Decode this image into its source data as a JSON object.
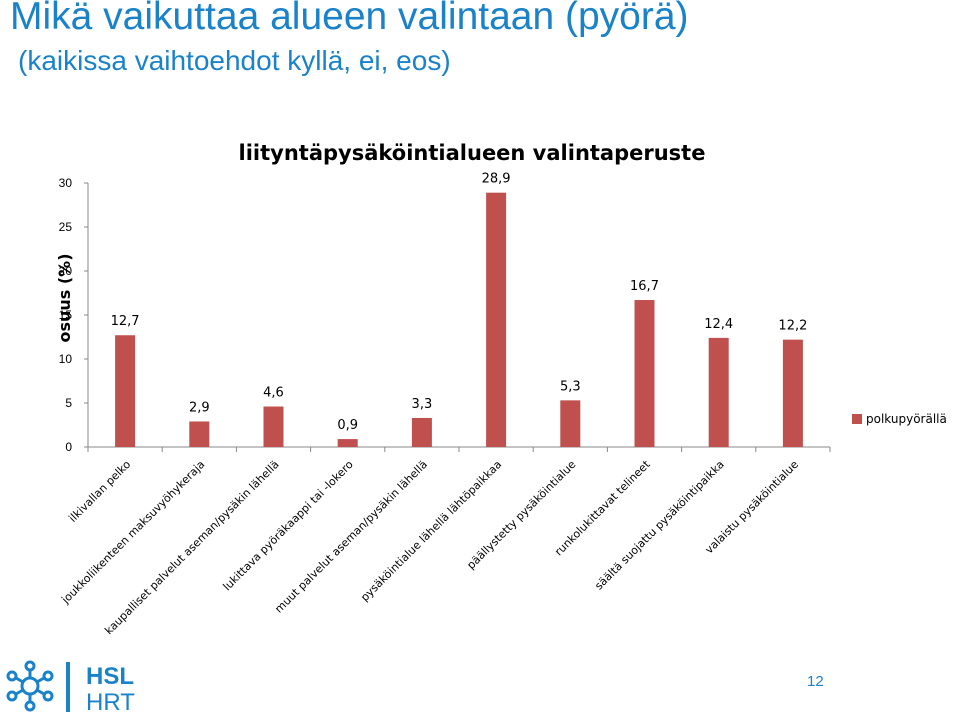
{
  "slide": {
    "title": "Mikä vaikuttaa alueen valintaan (pyörä)",
    "subtitle": "(kaikissa vaihtoehdot kyllä, ei, eos)",
    "page_number": "12"
  },
  "logo": {
    "line1": "HSL",
    "line2": "HRT"
  },
  "colors": {
    "accent": "#1a82c9",
    "bar": "#c0504d"
  },
  "chart_data": {
    "type": "bar",
    "title": "liityntäpysäköintialueen valintaperuste",
    "ylabel": "osuus (%)",
    "xlabel": "",
    "ylim": [
      0,
      30
    ],
    "yticks": [
      0,
      5,
      10,
      15,
      20,
      25,
      30
    ],
    "categories": [
      "ilkivallan pelko",
      "joukkoliikenteen maksuvyöhykeraja",
      "kaupalliset palvelut aseman/pysäkin lähellä",
      "lukittava pyöräkaappi tai -lokero",
      "muut palvelut aseman/pysäkin lähellä",
      "pysäköintialue lähellä lähtöpaikkaa",
      "päällystetty pysäköintialue",
      "runkolukittavat telineet",
      "säältä suojattu pysäköintipaikka",
      "valaistu pysäköintialue"
    ],
    "series": [
      {
        "name": "polkupyörällä",
        "values": [
          12.7,
          2.9,
          4.6,
          0.9,
          3.3,
          28.9,
          5.3,
          16.7,
          12.4,
          12.2
        ],
        "labels": [
          "12,7",
          "2,9",
          "4,6",
          "0,9",
          "3,3",
          "28,9",
          "5,3",
          "16,7",
          "12,4",
          "12,2"
        ]
      }
    ],
    "grid": false,
    "legend": "right"
  }
}
